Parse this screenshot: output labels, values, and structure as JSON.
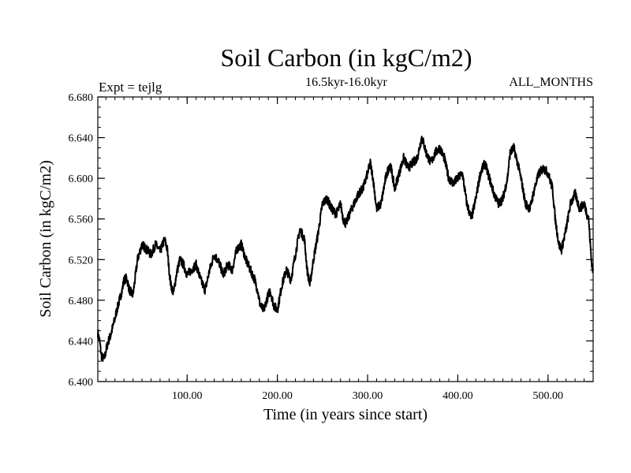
{
  "chart_data": {
    "type": "line",
    "title": "Soil Carbon (in kgC/m2)",
    "subtitle": "16.5kyr-16.0kyr",
    "left_label": "Expt = tejlg",
    "right_label": "ALL_MONTHS",
    "xlabel": "Time (in years since start)",
    "ylabel": "Soil Carbon (in kgC/m2)",
    "xlim": [
      1,
      550
    ],
    "ylim": [
      6.4,
      6.68
    ],
    "x_ticks": [
      100,
      200,
      300,
      400,
      500
    ],
    "x_tick_labels": [
      "100.00",
      "200.00",
      "300.00",
      "400.00",
      "500.00"
    ],
    "y_ticks": [
      6.4,
      6.44,
      6.48,
      6.52,
      6.56,
      6.6,
      6.64,
      6.68
    ],
    "y_tick_labels": [
      "6.400",
      "6.440",
      "6.480",
      "6.520",
      "6.560",
      "6.600",
      "6.640",
      "6.680"
    ],
    "x_minor_step": 10,
    "y_minor_step": 0.01,
    "grid": false,
    "line_color": "#000000",
    "series": [
      {
        "name": "Soil Carbon",
        "x": [
          1,
          3,
          5,
          8,
          10,
          12,
          15,
          18,
          20,
          22,
          25,
          28,
          30,
          33,
          36,
          40,
          45,
          50,
          55,
          60,
          65,
          70,
          75,
          78,
          80,
          82,
          85,
          88,
          92,
          96,
          100,
          105,
          110,
          115,
          120,
          125,
          130,
          135,
          140,
          145,
          150,
          155,
          160,
          165,
          170,
          175,
          178,
          181,
          185,
          188,
          192,
          196,
          200,
          202,
          205,
          210,
          215,
          220,
          225,
          230,
          233,
          236,
          240,
          245,
          250,
          255,
          260,
          265,
          268,
          270,
          273,
          276,
          280,
          285,
          290,
          295,
          300,
          303,
          306,
          310,
          315,
          320,
          325,
          330,
          335,
          340,
          345,
          350,
          355,
          360,
          362,
          365,
          370,
          375,
          380,
          385,
          390,
          395,
          400,
          405,
          410,
          415,
          420,
          425,
          430,
          435,
          440,
          445,
          450,
          455,
          458,
          462,
          465,
          470,
          475,
          480,
          485,
          490,
          495,
          500,
          505,
          508,
          512,
          515,
          520,
          525,
          530,
          535,
          540,
          545,
          548,
          550
        ],
        "values": [
          6.448,
          6.44,
          6.425,
          6.422,
          6.43,
          6.438,
          6.445,
          6.455,
          6.462,
          6.47,
          6.48,
          6.49,
          6.5,
          6.502,
          6.49,
          6.485,
          6.52,
          6.535,
          6.53,
          6.525,
          6.535,
          6.528,
          6.54,
          6.53,
          6.51,
          6.495,
          6.487,
          6.505,
          6.52,
          6.515,
          6.505,
          6.51,
          6.515,
          6.5,
          6.49,
          6.51,
          6.525,
          6.518,
          6.505,
          6.515,
          6.51,
          6.53,
          6.535,
          6.52,
          6.51,
          6.5,
          6.49,
          6.475,
          6.47,
          6.48,
          6.49,
          6.475,
          6.47,
          6.48,
          6.495,
          6.51,
          6.5,
          6.525,
          6.55,
          6.54,
          6.51,
          6.495,
          6.52,
          6.545,
          6.575,
          6.58,
          6.57,
          6.565,
          6.57,
          6.575,
          6.56,
          6.555,
          6.565,
          6.575,
          6.585,
          6.59,
          6.605,
          6.615,
          6.6,
          6.57,
          6.575,
          6.6,
          6.615,
          6.59,
          6.605,
          6.62,
          6.61,
          6.615,
          6.62,
          6.64,
          6.635,
          6.625,
          6.615,
          6.625,
          6.63,
          6.62,
          6.6,
          6.595,
          6.6,
          6.605,
          6.575,
          6.56,
          6.58,
          6.605,
          6.615,
          6.6,
          6.585,
          6.575,
          6.58,
          6.6,
          6.625,
          6.63,
          6.62,
          6.6,
          6.575,
          6.57,
          6.59,
          6.605,
          6.61,
          6.605,
          6.59,
          6.56,
          6.535,
          6.53,
          6.55,
          6.575,
          6.585,
          6.57,
          6.575,
          6.56,
          6.52,
          6.507
        ]
      }
    ]
  }
}
